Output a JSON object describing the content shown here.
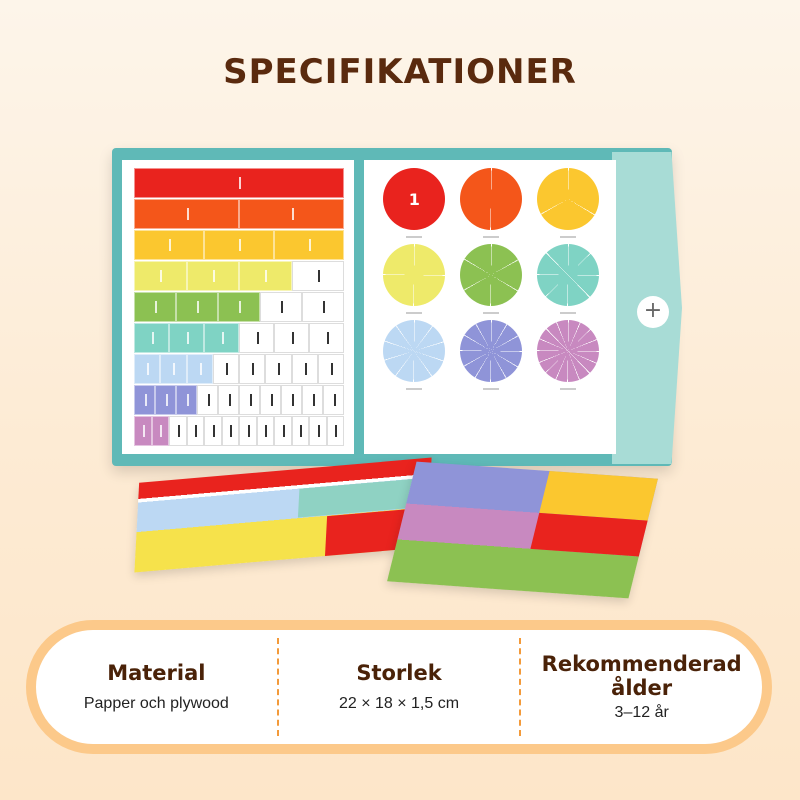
{
  "title": "SPECIFIKATIONER",
  "product": {
    "colors": {
      "teal": "#5fb9b7",
      "red": "#e9231e",
      "orange": "#f4561a",
      "yellow": "#fbc72f",
      "lightyellow": "#eeea6a",
      "green": "#8cc152",
      "aqua": "#7fd3c4",
      "lightblue": "#bcd8f3",
      "periwinkle": "#8f94d8",
      "pink": "#c889c0"
    },
    "whole_circle_label": "1",
    "clasp_icon": "plus-icon"
  },
  "specs": [
    {
      "label": "Material",
      "value": "Papper och plywood"
    },
    {
      "label": "Storlek",
      "value": "22 × 18 × 1,5 cm"
    },
    {
      "label": "Rekommenderad ålder",
      "value": "3–12 år"
    }
  ],
  "accent": {
    "border": "#fcc98a",
    "separator": "#f39a3a",
    "heading": "#4a2208"
  }
}
